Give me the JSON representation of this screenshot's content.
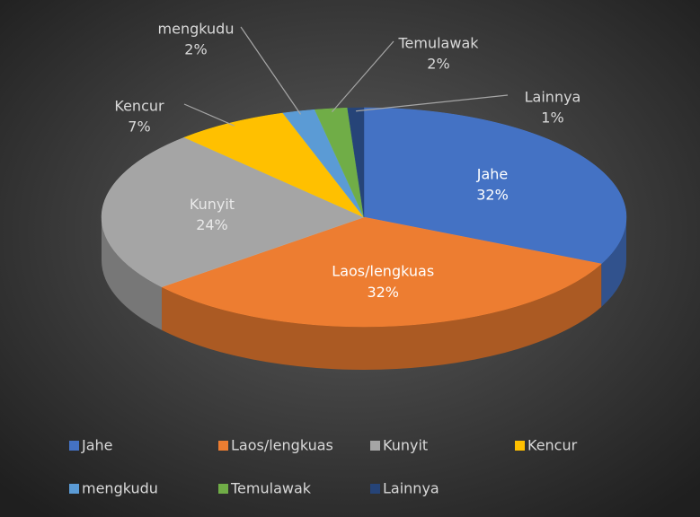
{
  "chart_data": {
    "type": "pie3d",
    "categories": [
      "Jahe",
      "Laos/lengkuas",
      "Kunyit",
      "Kencur",
      "mengkudu",
      "Temulawak",
      "Lainnya"
    ],
    "values": [
      32,
      32,
      24,
      7,
      2,
      2,
      1
    ],
    "value_labels": [
      "32%",
      "32%",
      "24%",
      "7%",
      "2%",
      "2%",
      "1%"
    ],
    "colors": [
      "#4472c4",
      "#ed7d31",
      "#a5a5a5",
      "#ffc000",
      "#5b9bd5",
      "#70ad47",
      "#264478"
    ],
    "legend": "bottom"
  }
}
